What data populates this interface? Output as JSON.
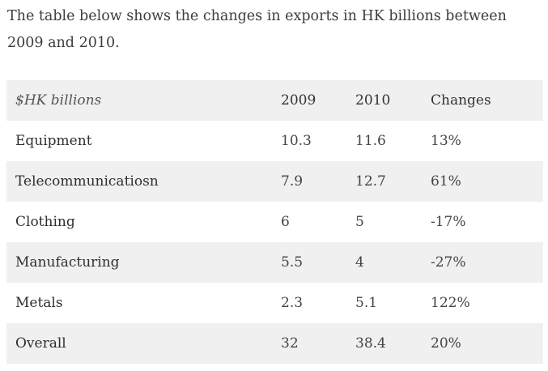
{
  "intro": "The table below shows the changes in exports in HK billions between 2009 and 2010.",
  "table": {
    "headers": [
      "$HK billions",
      "2009",
      "2010",
      "Changes"
    ],
    "rows": [
      {
        "label": "Equipment",
        "y2009": "10.3",
        "y2010": "11.6",
        "change": "13%"
      },
      {
        "label": "Telecommunicatiosn",
        "y2009": "7.9",
        "y2010": "12.7",
        "change": "61%"
      },
      {
        "label": "Clothing",
        "y2009": "6",
        "y2010": "5",
        "change": "-17%"
      },
      {
        "label": "Manufacturing",
        "y2009": "5.5",
        "y2010": "4",
        "change": "-27%"
      },
      {
        "label": "Metals",
        "y2009": "2.3",
        "y2010": "5.1",
        "change": "122%"
      },
      {
        "label": "Overall",
        "y2009": "32",
        "y2010": "38.4",
        "change": "20%"
      }
    ]
  },
  "colors": {
    "row_shade": "#f0f0f0",
    "text": "#3a3a3a"
  }
}
